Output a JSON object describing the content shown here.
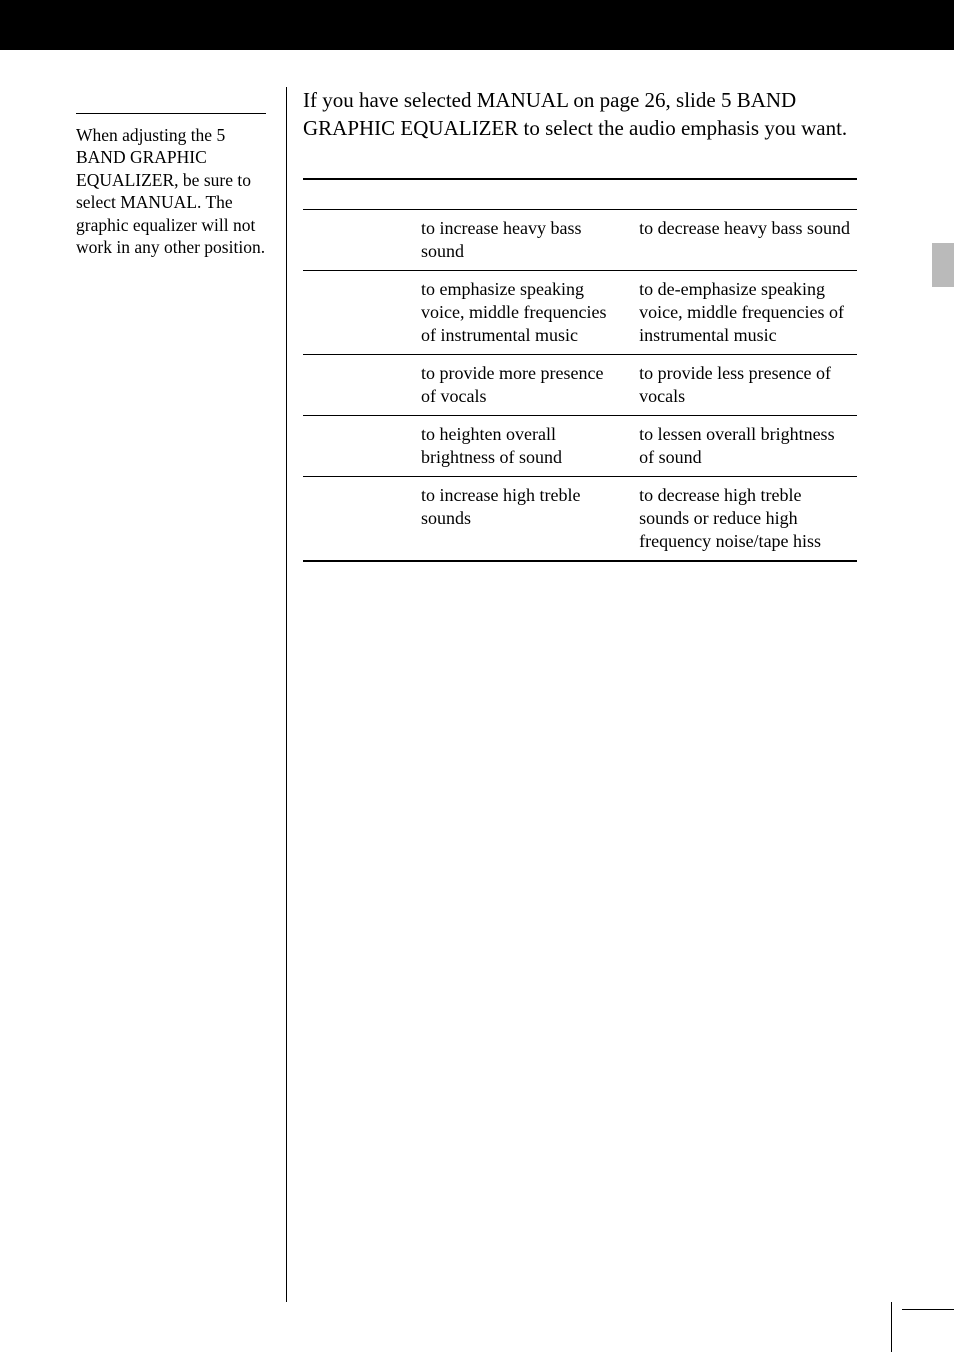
{
  "sidenote": "When adjusting the 5 BAND GRAPHIC EQUALIZER, be sure to select MANUAL. The graphic equalizer will not work in any other position.",
  "intro": "If you have selected MANUAL on page 26, slide 5 BAND GRAPHIC EQUALIZER to select the audio emphasis you want.",
  "table": {
    "rows": [
      {
        "band": "",
        "up": "to increase heavy bass sound",
        "down": "to decrease heavy bass sound"
      },
      {
        "band": "",
        "up": "to emphasize speaking voice, middle frequencies of instrumental music",
        "down": "to de-emphasize speaking voice, middle frequencies of instrumental music"
      },
      {
        "band": "",
        "up": "to provide more presence of vocals",
        "down": "to provide less presence of vocals"
      },
      {
        "band": "",
        "up": "to heighten overall brightness of sound",
        "down": "to lessen overall brightness of sound"
      },
      {
        "band": "",
        "up": "to increase high treble sounds",
        "down": "to decrease high treble sounds or reduce high frequency noise/tape hiss"
      }
    ]
  }
}
